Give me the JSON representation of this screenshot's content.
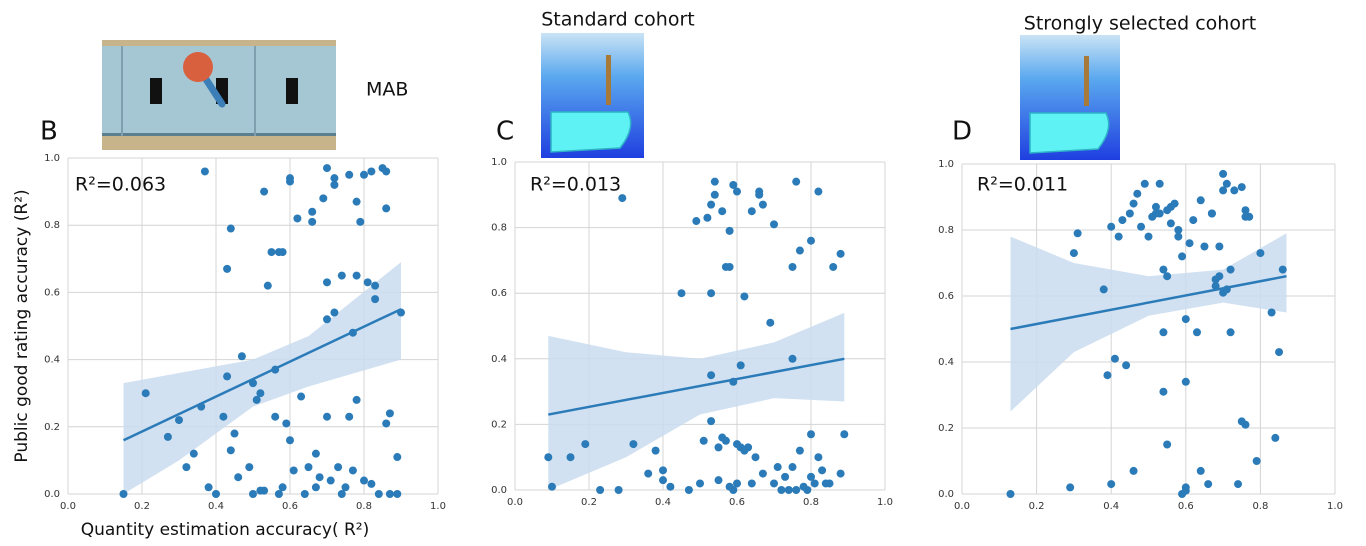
{
  "chart_data": [
    {
      "type": "scatter",
      "label": "B",
      "side_label": "MAB",
      "annotation": "R²=0.063",
      "xlabel": "Quantity estimation accuracy( R²)",
      "ylabel": "Public good rating accuracy (R²)",
      "color": "#2b7bb9",
      "band_color": "#c9dcee",
      "grid": true,
      "xlim": [
        0,
        1
      ],
      "ylim": [
        0,
        1
      ],
      "xticks": [
        {
          "value": 0,
          "label": "0.0"
        },
        0.2,
        0.4,
        0.6,
        0.8,
        {
          "value": 1,
          "label": "1.0"
        }
      ],
      "yticks": [
        {
          "value": 0,
          "label": "0.0"
        },
        0.2,
        0.4,
        0.6,
        0.8,
        {
          "value": 1,
          "label": "1.0"
        }
      ],
      "x": [
        0.15,
        0.21,
        0.27,
        0.3,
        0.32,
        0.34,
        0.36,
        0.37,
        0.38,
        0.4,
        0.42,
        0.43,
        0.43,
        0.44,
        0.44,
        0.45,
        0.46,
        0.47,
        0.49,
        0.5,
        0.5,
        0.51,
        0.52,
        0.52,
        0.53,
        0.53,
        0.54,
        0.55,
        0.56,
        0.56,
        0.57,
        0.57,
        0.58,
        0.58,
        0.59,
        0.6,
        0.6,
        0.6,
        0.61,
        0.62,
        0.63,
        0.64,
        0.65,
        0.66,
        0.66,
        0.67,
        0.67,
        0.68,
        0.69,
        0.7,
        0.7,
        0.7,
        0.7,
        0.71,
        0.72,
        0.72,
        0.72,
        0.73,
        0.74,
        0.74,
        0.75,
        0.76,
        0.76,
        0.77,
        0.77,
        0.78,
        0.78,
        0.78,
        0.79,
        0.8,
        0.8,
        0.81,
        0.82,
        0.82,
        0.83,
        0.83,
        0.84,
        0.85,
        0.86,
        0.86,
        0.87,
        0.86,
        0.87,
        0.89,
        0.9,
        0.89
      ],
      "y": [
        0.0,
        0.3,
        0.17,
        0.22,
        0.08,
        0.12,
        0.26,
        0.96,
        0.02,
        0.0,
        0.23,
        0.35,
        0.67,
        0.79,
        0.13,
        0.18,
        0.05,
        0.41,
        0.08,
        0.33,
        0.0,
        0.28,
        0.3,
        0.01,
        0.9,
        0.01,
        0.62,
        0.72,
        0.37,
        0.23,
        0.72,
        0.0,
        0.72,
        0.02,
        0.21,
        0.16,
        0.93,
        0.94,
        0.07,
        0.82,
        0.29,
        0.0,
        0.08,
        0.84,
        0.81,
        0.12,
        0.02,
        0.05,
        0.88,
        0.97,
        0.52,
        0.23,
        0.63,
        0.04,
        0.94,
        0.92,
        0.54,
        0.08,
        0.65,
        0.0,
        0.02,
        0.95,
        0.23,
        0.07,
        0.48,
        0.87,
        0.28,
        0.65,
        0.81,
        0.04,
        0.95,
        0.63,
        0.96,
        0.03,
        0.58,
        0.62,
        0.0,
        0.97,
        0.96,
        0.85,
        0.24,
        0.21,
        0.0,
        0.11,
        0.54,
        0.0
      ],
      "fit": {
        "x": [
          0.15,
          0.9
        ],
        "y": [
          0.16,
          0.55
        ]
      },
      "ci": {
        "x": [
          0.15,
          0.3,
          0.5,
          0.65,
          0.9
        ],
        "lower": [
          0.0,
          0.1,
          0.26,
          0.32,
          0.4
        ],
        "upper": [
          0.33,
          0.36,
          0.4,
          0.47,
          0.69
        ]
      }
    },
    {
      "type": "scatter",
      "label": "C",
      "title": "Standard cohort",
      "annotation": "R²=0.013",
      "color": "#2b7bb9",
      "band_color": "#c9dcee",
      "grid": true,
      "xlim": [
        0,
        1
      ],
      "ylim": [
        0,
        1
      ],
      "xticks": [
        {
          "value": 0,
          "label": "0.0"
        },
        0.2,
        0.4,
        0.6,
        0.8,
        {
          "value": 1,
          "label": "1.0"
        }
      ],
      "yticks": [
        {
          "value": 0,
          "label": "0.0"
        },
        0.2,
        0.4,
        0.6,
        0.8,
        {
          "value": 1,
          "label": "1.0"
        }
      ],
      "x": [
        0.09,
        0.1,
        0.15,
        0.19,
        0.23,
        0.28,
        0.29,
        0.32,
        0.36,
        0.38,
        0.4,
        0.4,
        0.42,
        0.45,
        0.47,
        0.49,
        0.5,
        0.51,
        0.52,
        0.53,
        0.53,
        0.53,
        0.53,
        0.54,
        0.54,
        0.55,
        0.55,
        0.56,
        0.56,
        0.57,
        0.57,
        0.58,
        0.58,
        0.58,
        0.59,
        0.59,
        0.59,
        0.6,
        0.6,
        0.6,
        0.61,
        0.61,
        0.62,
        0.62,
        0.63,
        0.64,
        0.64,
        0.65,
        0.66,
        0.66,
        0.67,
        0.67,
        0.69,
        0.7,
        0.7,
        0.71,
        0.72,
        0.73,
        0.74,
        0.75,
        0.75,
        0.75,
        0.76,
        0.76,
        0.77,
        0.77,
        0.78,
        0.79,
        0.8,
        0.8,
        0.8,
        0.81,
        0.82,
        0.82,
        0.83,
        0.84,
        0.85,
        0.86,
        0.88,
        0.88,
        0.89
      ],
      "y": [
        0.1,
        0.01,
        0.1,
        0.14,
        0.0,
        0.0,
        0.89,
        0.14,
        0.05,
        0.12,
        0.03,
        0.06,
        0.01,
        0.6,
        0.0,
        0.82,
        0.02,
        0.15,
        0.83,
        0.35,
        0.87,
        0.6,
        0.21,
        0.94,
        0.9,
        0.13,
        0.03,
        0.85,
        0.16,
        0.68,
        0.15,
        0.68,
        0.79,
        0.01,
        0.93,
        0.33,
        0.0,
        0.91,
        0.14,
        0.02,
        0.38,
        0.13,
        0.12,
        0.59,
        0.13,
        0.85,
        0.02,
        0.1,
        0.91,
        0.9,
        0.05,
        0.87,
        0.51,
        0.81,
        0.02,
        0.07,
        0.0,
        0.04,
        0.0,
        0.4,
        0.68,
        0.07,
        0.94,
        0.0,
        0.73,
        0.12,
        0.01,
        0.0,
        0.76,
        0.17,
        0.04,
        0.02,
        0.91,
        0.1,
        0.06,
        0.02,
        0.02,
        0.68,
        0.72,
        0.05,
        0.17
      ],
      "fit": {
        "x": [
          0.09,
          0.89
        ],
        "y": [
          0.23,
          0.4
        ]
      },
      "ci": {
        "x": [
          0.09,
          0.3,
          0.5,
          0.7,
          0.89
        ],
        "lower": [
          0.0,
          0.1,
          0.23,
          0.28,
          0.27
        ],
        "upper": [
          0.47,
          0.42,
          0.4,
          0.45,
          0.54
        ]
      }
    },
    {
      "type": "scatter",
      "label": "D",
      "title": "Strongly selected cohort",
      "annotation": "R²=0.011",
      "color": "#2b7bb9",
      "band_color": "#c9dcee",
      "grid": true,
      "xlim": [
        0,
        1
      ],
      "ylim": [
        0,
        1
      ],
      "xticks": [
        {
          "value": 0,
          "label": "0.0"
        },
        0.2,
        0.4,
        0.6,
        0.8,
        {
          "value": 1,
          "label": "1.0"
        }
      ],
      "yticks": [
        {
          "value": 0,
          "label": "0.0"
        },
        0.2,
        0.4,
        0.6,
        0.8,
        {
          "value": 1,
          "label": "1.0"
        }
      ],
      "x": [
        0.13,
        0.29,
        0.3,
        0.31,
        0.38,
        0.39,
        0.4,
        0.4,
        0.41,
        0.42,
        0.43,
        0.44,
        0.45,
        0.46,
        0.46,
        0.47,
        0.48,
        0.49,
        0.5,
        0.51,
        0.52,
        0.52,
        0.53,
        0.53,
        0.54,
        0.54,
        0.54,
        0.55,
        0.55,
        0.55,
        0.56,
        0.56,
        0.57,
        0.58,
        0.58,
        0.59,
        0.59,
        0.6,
        0.6,
        0.6,
        0.6,
        0.61,
        0.62,
        0.63,
        0.64,
        0.64,
        0.65,
        0.66,
        0.67,
        0.67,
        0.68,
        0.68,
        0.69,
        0.69,
        0.7,
        0.7,
        0.7,
        0.71,
        0.71,
        0.72,
        0.72,
        0.73,
        0.74,
        0.75,
        0.75,
        0.76,
        0.76,
        0.76,
        0.77,
        0.79,
        0.8,
        0.83,
        0.84,
        0.85,
        0.86
      ],
      "y": [
        0.0,
        0.02,
        0.73,
        0.79,
        0.62,
        0.36,
        0.81,
        0.03,
        0.41,
        0.78,
        0.83,
        0.39,
        0.85,
        0.07,
        0.88,
        0.91,
        0.81,
        0.94,
        0.78,
        0.84,
        0.85,
        0.87,
        0.94,
        0.85,
        0.68,
        0.49,
        0.31,
        0.66,
        0.15,
        0.86,
        0.82,
        0.87,
        0.88,
        0.78,
        0.8,
        0.72,
        0.0,
        0.01,
        0.02,
        0.53,
        0.34,
        0.76,
        0.83,
        0.49,
        0.07,
        0.89,
        0.75,
        0.03,
        0.85,
        0.85,
        0.65,
        0.63,
        0.66,
        0.75,
        0.97,
        0.92,
        0.61,
        0.62,
        0.94,
        0.68,
        0.49,
        0.92,
        0.03,
        0.93,
        0.22,
        0.21,
        0.86,
        0.84,
        0.84,
        0.1,
        0.73,
        0.55,
        0.17,
        0.43,
        0.68
      ],
      "fit": {
        "x": [
          0.13,
          0.87
        ],
        "y": [
          0.5,
          0.66
        ]
      },
      "ci": {
        "x": [
          0.13,
          0.3,
          0.5,
          0.7,
          0.87
        ],
        "lower": [
          0.25,
          0.43,
          0.54,
          0.58,
          0.55
        ],
        "upper": [
          0.78,
          0.7,
          0.66,
          0.68,
          0.79
        ]
      }
    }
  ]
}
